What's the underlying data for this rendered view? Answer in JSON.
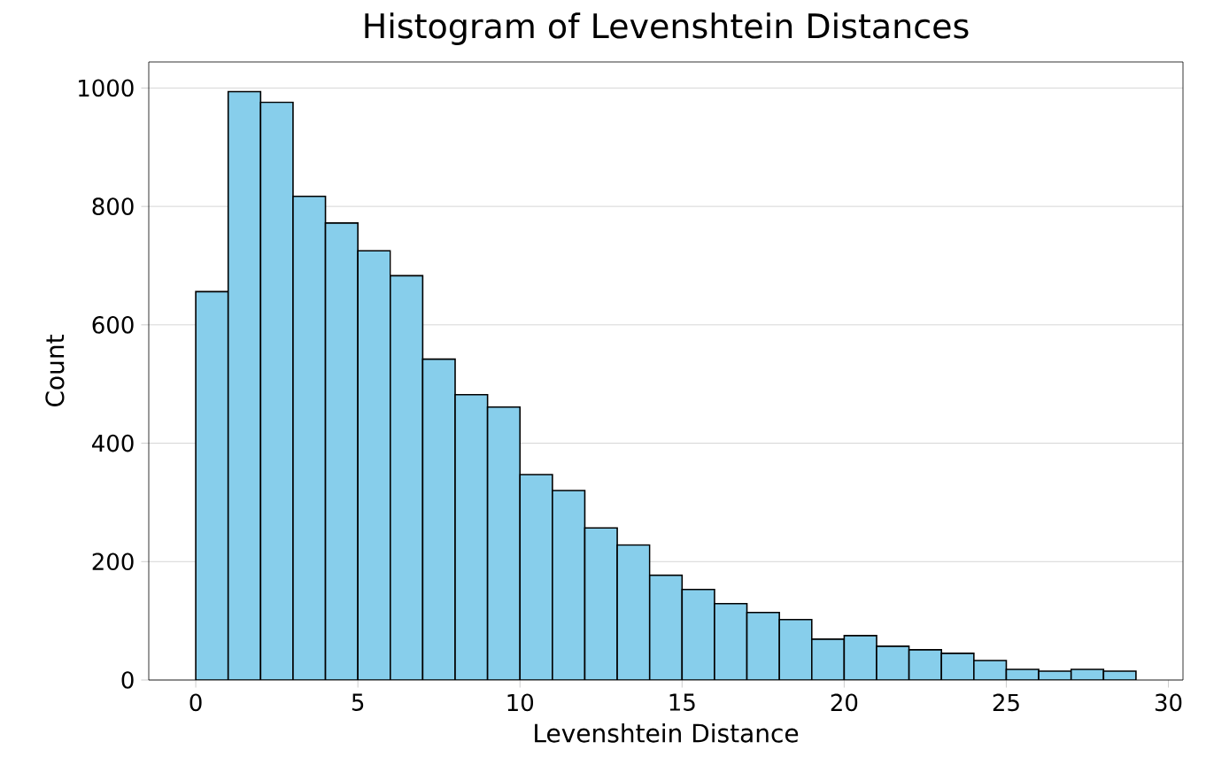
{
  "chart_data": {
    "type": "histogram",
    "title": "Histogram of Levenshtein Distances",
    "xlabel": "Levenshtein Distance",
    "ylabel": "Count",
    "bins": [
      0,
      1,
      2,
      3,
      4,
      5,
      6,
      7,
      8,
      9,
      10,
      11,
      12,
      13,
      14,
      15,
      16,
      17,
      18,
      19,
      20,
      21,
      22,
      23,
      24,
      25,
      26,
      27,
      28,
      29
    ],
    "values": [
      656,
      994,
      976,
      817,
      772,
      725,
      683,
      542,
      482,
      461,
      347,
      320,
      257,
      228,
      177,
      153,
      129,
      114,
      102,
      69,
      75,
      57,
      51,
      45,
      33,
      18,
      15,
      18,
      15
    ],
    "color": "#87ceeb",
    "xlim": [
      -1.45,
      30.45
    ],
    "ylim": [
      0,
      1044
    ],
    "xticks": [
      0,
      5,
      10,
      15,
      20,
      25,
      30
    ],
    "yticks": [
      0,
      200,
      400,
      600,
      800,
      1000
    ],
    "grid": "y"
  }
}
